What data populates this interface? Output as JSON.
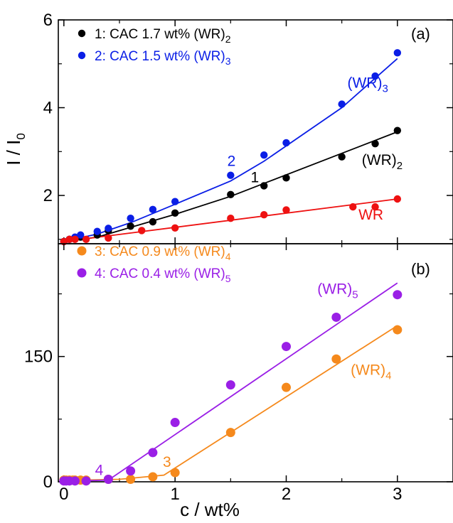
{
  "colors": {
    "black": "#000000",
    "blue": "#0a1ee6",
    "red": "#ee1111",
    "orange": "#f5891c",
    "purple": "#9a1fe6"
  },
  "x_axis": {
    "label": "c / wt%",
    "range": [
      -0.05,
      3.5
    ],
    "ticks": [
      0,
      1,
      2,
      3
    ],
    "tick_labels": [
      "0",
      "1",
      "2",
      "3"
    ]
  },
  "chart_data": [
    {
      "type": "scatter",
      "panel": "(a)",
      "ylabel": "I / I",
      "ylabel_sub": "0",
      "xlim": [
        -0.05,
        3.5
      ],
      "ylim": [
        0.9,
        6.0
      ],
      "yticks": [
        2,
        4,
        6
      ],
      "ytick_labels": [
        "2",
        "4",
        "6"
      ],
      "legend_position": "top-left",
      "series": [
        {
          "name": "1: CAC 1.7 wt% (WR)2",
          "legend_main": "1: CAC 1.7 wt% (WR)",
          "legend_sub": "2",
          "color_key": "black",
          "x": [
            0,
            0.05,
            0.1,
            0.15,
            0.3,
            0.4,
            0.6,
            0.8,
            1.0,
            1.5,
            1.8,
            2.0,
            2.5,
            2.8,
            3.0
          ],
          "y": [
            0.95,
            1.0,
            1.02,
            1.05,
            1.1,
            1.2,
            1.3,
            1.4,
            1.6,
            2.02,
            2.22,
            2.4,
            2.88,
            3.18,
            3.48
          ],
          "fit_x": [
            0.0,
            0.3,
            1.0,
            1.5,
            3.0
          ],
          "fit_y": [
            0.95,
            1.05,
            1.57,
            1.98,
            3.45
          ]
        },
        {
          "name": "2: CAC 1.5 wt% (WR)3",
          "legend_main": "2: CAC 1.5 wt% (WR)",
          "legend_sub": "3",
          "color_key": "blue",
          "x": [
            0,
            0.05,
            0.1,
            0.15,
            0.3,
            0.4,
            0.6,
            0.8,
            1.0,
            1.5,
            1.8,
            2.0,
            2.5,
            2.8,
            3.0
          ],
          "y": [
            0.95,
            1.0,
            1.05,
            1.1,
            1.18,
            1.25,
            1.48,
            1.68,
            1.86,
            2.46,
            2.92,
            3.2,
            4.08,
            4.72,
            5.25
          ],
          "fit_x": [
            0.0,
            0.3,
            0.6,
            1.0,
            1.5,
            1.8,
            2.5,
            3.0
          ],
          "fit_y": [
            0.95,
            1.12,
            1.38,
            1.8,
            2.33,
            2.78,
            4.0,
            5.12
          ]
        },
        {
          "name": "WR",
          "legend_main": "",
          "legend_sub": "",
          "color_key": "red",
          "x": [
            0,
            0.05,
            0.1,
            0.2,
            0.4,
            0.7,
            1.0,
            1.5,
            1.8,
            2.0,
            2.6,
            2.8,
            3.0
          ],
          "y": [
            0.95,
            1.0,
            1.0,
            1.0,
            1.03,
            1.2,
            1.26,
            1.48,
            1.56,
            1.67,
            1.74,
            1.74,
            1.92
          ],
          "fit_x": [
            0.0,
            3.0
          ],
          "fit_y": [
            0.95,
            1.92
          ]
        }
      ],
      "annotations": [
        {
          "text": "(WR)",
          "sub": "3",
          "x": 2.55,
          "y": 4.45,
          "color_key": "blue"
        },
        {
          "text": "(WR)",
          "sub": "2",
          "x": 2.68,
          "y": 2.7,
          "color_key": "black"
        },
        {
          "text": "WR",
          "x": 2.65,
          "y": 1.45,
          "color_key": "red"
        },
        {
          "text": "2",
          "x": 1.47,
          "y": 2.67,
          "color_key": "blue"
        },
        {
          "text": "1",
          "x": 1.68,
          "y": 2.3,
          "color_key": "black"
        }
      ]
    },
    {
      "type": "scatter",
      "panel": "(b)",
      "ylabel": "",
      "xlim": [
        -0.05,
        3.5
      ],
      "ylim": [
        0,
        285
      ],
      "yticks": [
        0,
        150
      ],
      "ytick_labels": [
        "0",
        "150"
      ],
      "legend_position": "top-left",
      "series": [
        {
          "name": "3: CAC 0.9 wt% (WR)4",
          "legend_main": "3: CAC 0.9 wt% (WR)",
          "legend_sub": "4",
          "color_key": "orange",
          "x": [
            0,
            0.02,
            0.05,
            0.08,
            0.1,
            0.15,
            0.2,
            0.4,
            0.6,
            0.8,
            1.0,
            1.5,
            2.0,
            2.45,
            3.0
          ],
          "y": [
            2,
            2,
            2,
            2,
            2,
            2,
            2,
            3,
            3,
            6,
            11,
            59,
            113,
            147,
            182
          ],
          "fit_x": [
            0.0,
            0.5,
            0.9,
            3.0
          ],
          "fit_y": [
            1.5,
            3.0,
            8.0,
            187.0
          ]
        },
        {
          "name": "4: CAC 0.4 wt% (WR)5",
          "legend_main": "4: CAC 0.4 wt% (WR)",
          "legend_sub": "5",
          "color_key": "purple",
          "x": [
            0,
            0.02,
            0.05,
            0.1,
            0.2,
            0.4,
            0.6,
            0.8,
            1.0,
            1.5,
            2.0,
            2.45,
            3.0
          ],
          "y": [
            1,
            1,
            1,
            1,
            1,
            3,
            13,
            35,
            71,
            116,
            162,
            197,
            224
          ],
          "fit_x": [
            0.0,
            0.4,
            3.0
          ],
          "fit_y": [
            0.5,
            2.0,
            238.0
          ]
        }
      ],
      "annotations": [
        {
          "text": "(WR)",
          "sub": "5",
          "x": 2.28,
          "y": 225,
          "color_key": "purple"
        },
        {
          "text": "(WR)",
          "sub": "4",
          "x": 2.58,
          "y": 128,
          "color_key": "orange"
        },
        {
          "text": "4",
          "x": 0.28,
          "y": 8,
          "color_key": "purple"
        },
        {
          "text": "3",
          "x": 0.89,
          "y": 18,
          "color_key": "orange"
        }
      ]
    }
  ]
}
